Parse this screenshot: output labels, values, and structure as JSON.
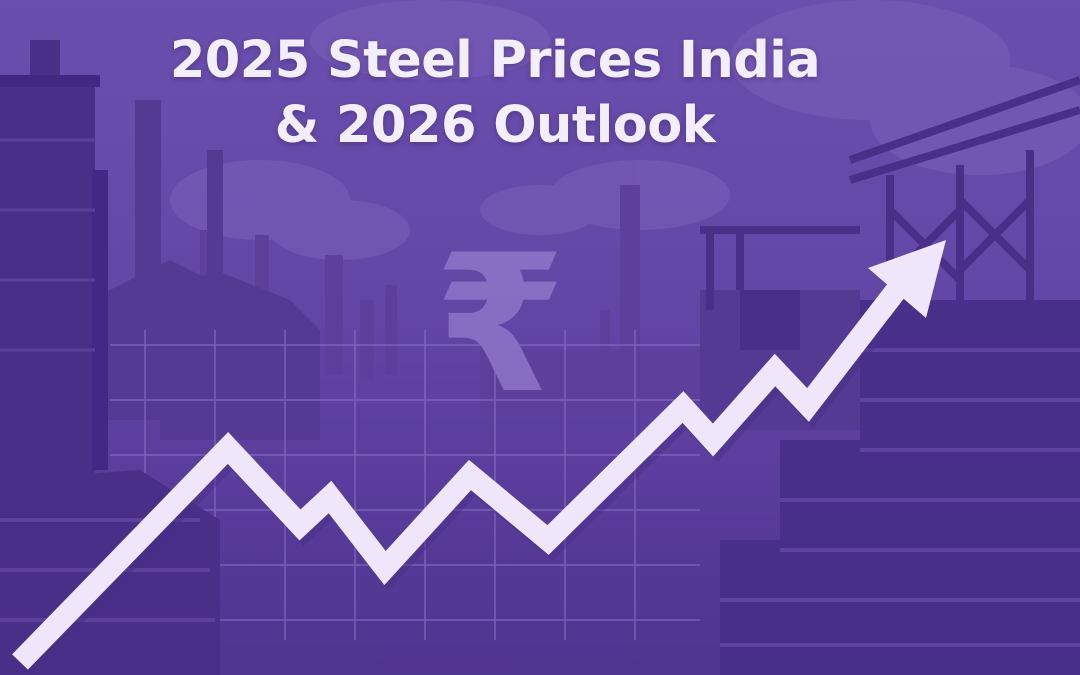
{
  "banner": {
    "title_line_1": "2025 Steel Prices India",
    "title_line_2": "& 2026 Outlook",
    "currency_symbol": "₹"
  },
  "colors": {
    "background": "#6448a8",
    "silhouette_dark": "#4a2f88",
    "silhouette_mid": "#553a94",
    "arrow": "#efe6fb",
    "text": "#f3eefc"
  }
}
